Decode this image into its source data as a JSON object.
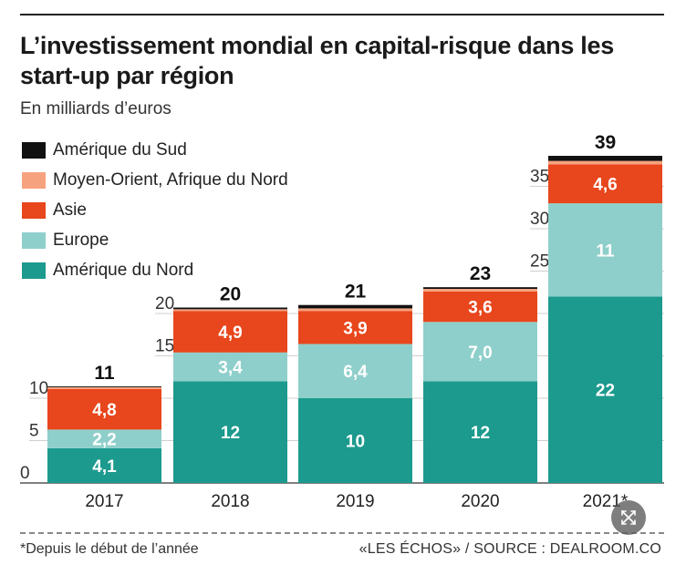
{
  "header": {
    "title": "L’investissement mondial en capital-risque dans les start-up par région",
    "subtitle": "En milliards d’euros"
  },
  "colors": {
    "amerique_du_sud": "#111111",
    "moyen_orient": "#f7a27e",
    "asie": "#e8461c",
    "europe": "#8fcfcb",
    "amerique_du_nord": "#1c9a8d"
  },
  "chart_data": {
    "type": "bar",
    "stacked": true,
    "title": "L’investissement mondial en capital-risque dans les start-up par région",
    "subtitle": "En milliards d’euros",
    "categories": [
      "2017",
      "2018",
      "2019",
      "2020",
      "2021*"
    ],
    "totals": [
      "11",
      "20",
      "21",
      "23",
      "39"
    ],
    "series": [
      {
        "name": "Amérique du Nord",
        "values": [
          4.1,
          12,
          10,
          12,
          22
        ],
        "labels": [
          "4,1",
          "12",
          "10",
          "12",
          "22"
        ],
        "color": "#1c9a8d",
        "label_color": "#ffffff"
      },
      {
        "name": "Europe",
        "values": [
          2.2,
          3.4,
          6.4,
          7.0,
          11
        ],
        "labels": [
          "2,2",
          "3,4",
          "6,4",
          "7,0",
          "11"
        ],
        "color": "#8fcfcb",
        "label_color": "#ffffff"
      },
      {
        "name": "Asie",
        "values": [
          4.8,
          4.9,
          3.9,
          3.6,
          4.6
        ],
        "labels": [
          "4,8",
          "4,9",
          "3,9",
          "3,6",
          "4,6"
        ],
        "color": "#e8461c",
        "label_color": "#ffffff"
      },
      {
        "name": "Moyen-Orient, Afrique du Nord",
        "values": [
          0.2,
          0.2,
          0.3,
          0.3,
          0.4
        ],
        "labels": [
          "",
          "",
          "",
          "",
          ""
        ],
        "color": "#f7a27e",
        "label_color": "#ffffff"
      },
      {
        "name": "Amérique du Sud",
        "values": [
          0.1,
          0.2,
          0.4,
          0.2,
          0.6
        ],
        "labels": [
          "",
          "",
          "",
          "",
          ""
        ],
        "color": "#111111",
        "label_color": "#ffffff"
      }
    ],
    "legend_order": [
      "Amérique du Sud",
      "Moyen-Orient, Afrique du Nord",
      "Asie",
      "Europe",
      "Amérique du Nord"
    ],
    "yticks": [
      "0",
      "5",
      "10",
      "15",
      "20",
      "25",
      "30",
      "35"
    ],
    "ylim": [
      0,
      39
    ],
    "grid": true,
    "legend_position": "top-left"
  },
  "footer": {
    "footnote": "*Depuis le début de l’année",
    "source": "«LES ÉCHOS» / SOURCE : DEALROOM.CO"
  },
  "controls": {
    "expand_icon": "expand-arrows-icon"
  }
}
